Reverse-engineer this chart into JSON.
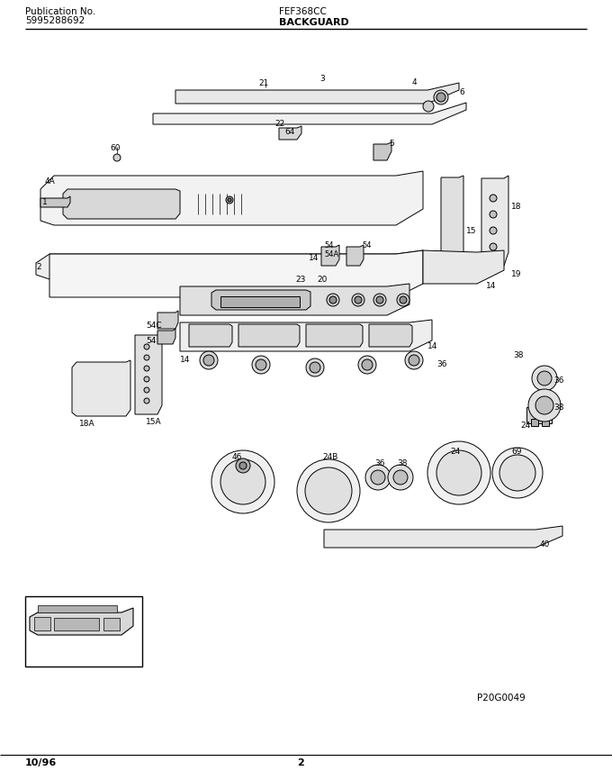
{
  "title_left_line1": "Publication No.",
  "title_left_line2": "5995288692",
  "title_center": "FEF368CC",
  "subtitle_center": "BACKGUARD",
  "footer_left": "10/96",
  "footer_center": "2",
  "watermark": "P20G0049",
  "bg_color": "#ffffff",
  "text_color": "#000000",
  "line_color": "#000000",
  "header_fontsize": 7.5,
  "footer_fontsize": 8,
  "label_fontsize": 6.5
}
